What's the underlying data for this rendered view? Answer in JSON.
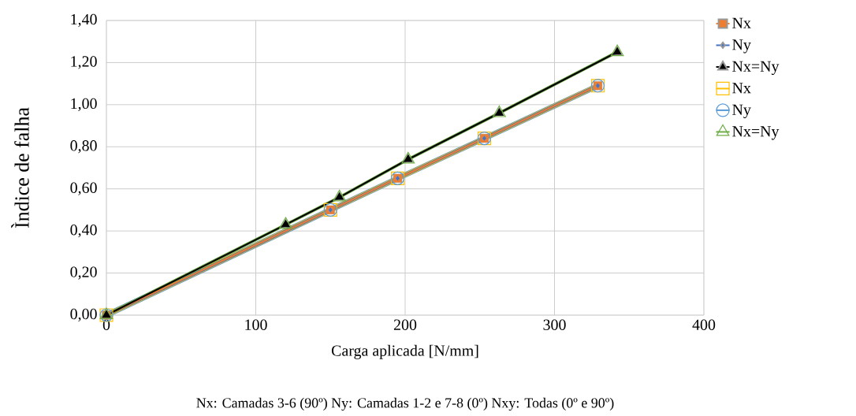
{
  "chart_data": {
    "type": "line",
    "xlabel": "Carga aplicada [N/mm]",
    "ylabel": "Ìndice de falha",
    "annotations": [
      "Nx: Camadas 3-6 (90º)  Ny: Camadas 1-2 e 7-8 (0º)   Nxy: Todas (0º e 90º)"
    ],
    "xlim": [
      0,
      400
    ],
    "xticks": [
      0,
      100,
      200,
      300,
      400
    ],
    "ylim": [
      0,
      1.4
    ],
    "yticks": [
      {
        "value": 0,
        "label": "0,00"
      },
      {
        "value": 0.2,
        "label": "0,20"
      },
      {
        "value": 0.4,
        "label": "0,40"
      },
      {
        "value": 0.6,
        "label": "0,60"
      },
      {
        "value": 0.8,
        "label": "0,80"
      },
      {
        "value": 1.0,
        "label": "1,00"
      },
      {
        "value": 1.2,
        "label": "1,20"
      },
      {
        "value": 1.4,
        "label": "1,40"
      }
    ],
    "grid": true,
    "legend": "right",
    "line_style": "solid",
    "series": [
      {
        "name": "Nx",
        "color": "#ed7d31",
        "marker": "square",
        "x": [
          0,
          150,
          195,
          253,
          329
        ],
        "values": [
          0,
          0.5,
          0.65,
          0.84,
          1.09
        ]
      },
      {
        "name": "Ny",
        "color": "#4472c4",
        "marker": "diamond",
        "x": [
          0,
          150,
          195,
          253,
          329
        ],
        "values": [
          0,
          0.5,
          0.65,
          0.84,
          1.09
        ]
      },
      {
        "name": "Nx=Ny",
        "color": "#000000",
        "marker": "triangle",
        "x": [
          0,
          120,
          156,
          202,
          263,
          342
        ],
        "values": [
          0,
          0.43,
          0.56,
          0.74,
          0.96,
          1.25
        ]
      },
      {
        "name": "Nx",
        "color": "#ffc000",
        "marker": "square",
        "x": [
          0,
          150,
          195,
          253,
          329
        ],
        "values": [
          0,
          0.5,
          0.65,
          0.84,
          1.09
        ]
      },
      {
        "name": "Ny",
        "color": "#5b9bd5",
        "marker": "circle",
        "x": [
          0,
          150,
          195,
          253,
          329
        ],
        "values": [
          0,
          0.5,
          0.65,
          0.84,
          1.09
        ]
      },
      {
        "name": "Nx=Ny",
        "color": "#70ad47",
        "marker": "triangle",
        "x": [
          0,
          120,
          156,
          202,
          263,
          342
        ],
        "values": [
          0,
          0.43,
          0.56,
          0.74,
          0.96,
          1.25
        ]
      }
    ]
  }
}
